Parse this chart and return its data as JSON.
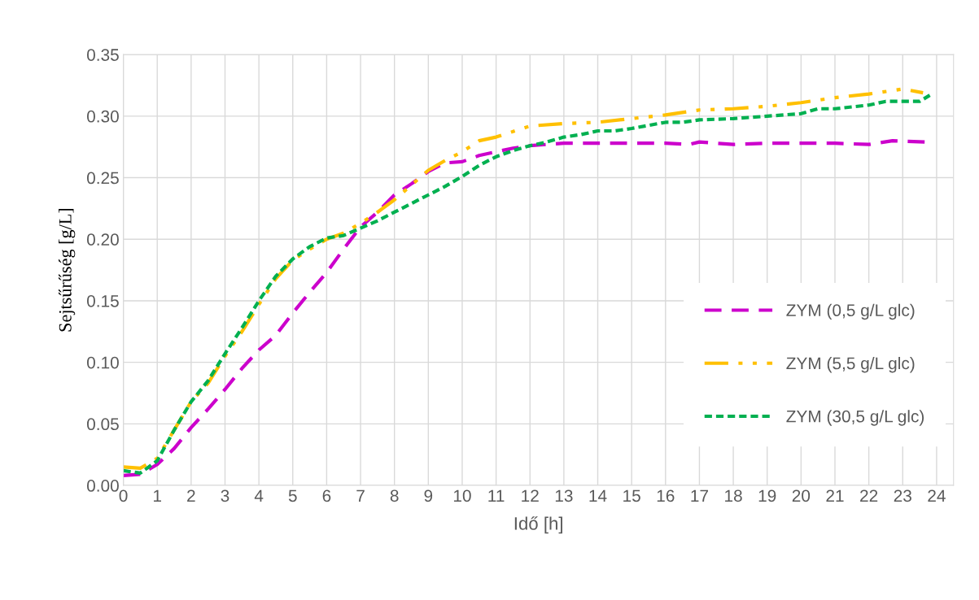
{
  "chart_data": {
    "type": "line",
    "xlabel": "Idő [h]",
    "ylabel": "Sejtsűrűség [g/L]",
    "xlim": [
      0,
      24.5
    ],
    "xticks": [
      0,
      1,
      2,
      3,
      4,
      5,
      6,
      7,
      8,
      9,
      10,
      11,
      12,
      13,
      14,
      15,
      16,
      17,
      18,
      19,
      20,
      21,
      22,
      23,
      24
    ],
    "ylim": [
      0,
      0.35
    ],
    "yticks": [
      {
        "value": 0,
        "label": "0.00"
      },
      {
        "value": 0.05,
        "label": "0.05"
      },
      {
        "value": 0.1,
        "label": "0.10"
      },
      {
        "value": 0.15,
        "label": "0.15"
      },
      {
        "value": 0.2,
        "label": "0.20"
      },
      {
        "value": 0.25,
        "label": "0.25"
      },
      {
        "value": 0.3,
        "label": "0.30"
      },
      {
        "value": 0.35,
        "label": "0.35"
      }
    ],
    "grid": true,
    "legend": "right",
    "marker": "none",
    "series": [
      {
        "name": "ZYM (0,5 g/L glc)",
        "color": "#cc00cc",
        "line_style": "dashed",
        "x": [
          0,
          0.5,
          1,
          1.5,
          2,
          2.5,
          3,
          3.5,
          4,
          4.5,
          5,
          5.5,
          6,
          6.5,
          7,
          7.5,
          8,
          8.5,
          9,
          9.5,
          10,
          10.5,
          11,
          11.5,
          12,
          13,
          14,
          15,
          16,
          16.7,
          17,
          18,
          19,
          20,
          21,
          22,
          22.7,
          23.7
        ],
        "values": [
          0.008,
          0.009,
          0.017,
          0.03,
          0.047,
          0.062,
          0.078,
          0.095,
          0.11,
          0.122,
          0.14,
          0.157,
          0.173,
          0.192,
          0.21,
          0.222,
          0.236,
          0.245,
          0.255,
          0.262,
          0.263,
          0.268,
          0.271,
          0.274,
          0.276,
          0.278,
          0.278,
          0.278,
          0.278,
          0.277,
          0.279,
          0.277,
          0.278,
          0.278,
          0.278,
          0.277,
          0.28,
          0.279
        ]
      },
      {
        "name": "ZYM (5,5 g/L glc)",
        "color": "#ffc000",
        "line_style": "dashdot",
        "x": [
          0,
          0.5,
          1,
          1.5,
          2,
          2.5,
          3,
          3.5,
          4,
          4.5,
          5,
          5.5,
          6,
          6.5,
          7,
          7.5,
          8,
          8.5,
          9,
          9.5,
          10,
          10.5,
          11,
          12,
          13,
          14,
          15,
          16,
          17,
          18,
          19,
          20,
          21,
          22,
          23,
          23.6
        ],
        "values": [
          0.015,
          0.014,
          0.022,
          0.045,
          0.068,
          0.083,
          0.105,
          0.125,
          0.147,
          0.168,
          0.183,
          0.192,
          0.2,
          0.205,
          0.213,
          0.222,
          0.232,
          0.244,
          0.256,
          0.264,
          0.271,
          0.28,
          0.283,
          0.292,
          0.294,
          0.295,
          0.298,
          0.301,
          0.305,
          0.306,
          0.308,
          0.311,
          0.315,
          0.318,
          0.322,
          0.319
        ]
      },
      {
        "name": "ZYM (30,5 g/L glc)",
        "color": "#00b050",
        "line_style": "dotted",
        "x": [
          0,
          0.5,
          1,
          1.5,
          2,
          2.5,
          3,
          3.5,
          4,
          4.5,
          5,
          5.5,
          6,
          6.5,
          7,
          7.5,
          8,
          8.5,
          9,
          9.5,
          10,
          10.5,
          11,
          11.5,
          12,
          12.5,
          13,
          13.5,
          14,
          14.5,
          15,
          16,
          16.5,
          17,
          18,
          19,
          20,
          20.5,
          21,
          22,
          22.5,
          23.5,
          23.8
        ],
        "values": [
          0.012,
          0.01,
          0.02,
          0.045,
          0.068,
          0.085,
          0.107,
          0.128,
          0.15,
          0.17,
          0.184,
          0.194,
          0.201,
          0.203,
          0.209,
          0.215,
          0.222,
          0.229,
          0.236,
          0.243,
          0.251,
          0.26,
          0.267,
          0.272,
          0.276,
          0.279,
          0.283,
          0.285,
          0.288,
          0.288,
          0.29,
          0.295,
          0.295,
          0.297,
          0.298,
          0.3,
          0.302,
          0.306,
          0.306,
          0.309,
          0.312,
          0.312,
          0.317
        ]
      }
    ]
  }
}
